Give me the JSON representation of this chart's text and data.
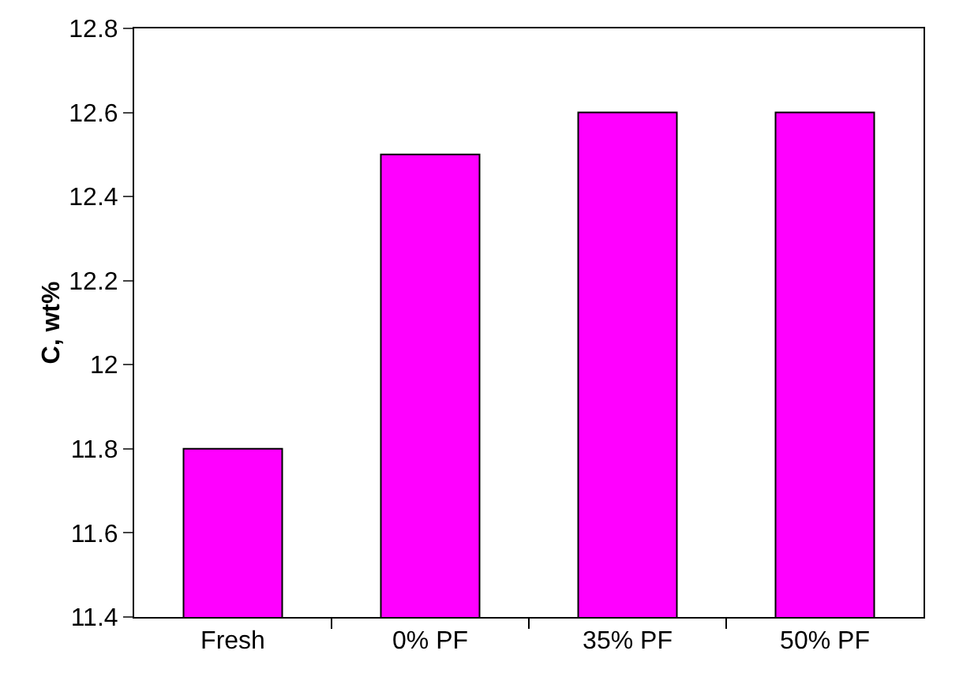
{
  "chart_data": {
    "type": "bar",
    "ylabel": "C, wt%",
    "categories": [
      "Fresh",
      "0% PF",
      "35% PF",
      "50% PF"
    ],
    "values": [
      11.8,
      12.5,
      12.6,
      12.6
    ],
    "color": "#ff00ff",
    "ylim": [
      11.4,
      12.8
    ],
    "yticks": [
      {
        "value": 11.4,
        "label": "11.4"
      },
      {
        "value": 11.6,
        "label": "11.6"
      },
      {
        "value": 11.8,
        "label": "11.8"
      },
      {
        "value": 12,
        "label": "12"
      },
      {
        "value": 12.2,
        "label": "12.2"
      },
      {
        "value": 12.4,
        "label": "12.4"
      },
      {
        "value": 12.6,
        "label": "12.6"
      },
      {
        "value": 12.8,
        "label": "12.8"
      }
    ],
    "grid": false,
    "legend": false
  }
}
